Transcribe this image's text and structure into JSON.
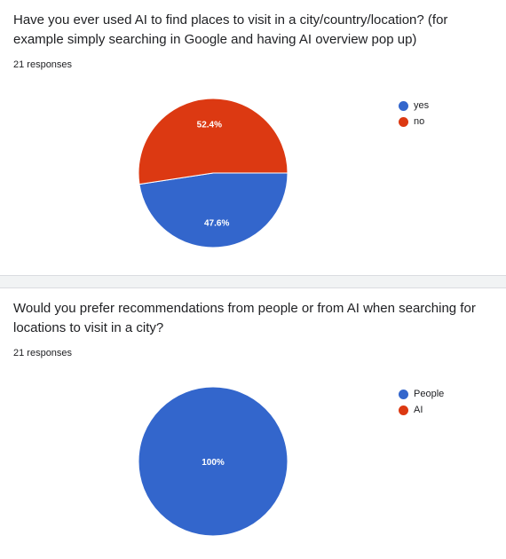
{
  "chart_data": [
    {
      "type": "pie",
      "title": "Have you ever used AI to find places to visit in a city/country/location? (for example simply searching in Google and having AI overview pop up)",
      "responses": "21 responses",
      "legend_position": "right",
      "categories": [
        "yes",
        "no"
      ],
      "values": [
        47.6,
        52.4
      ],
      "labels": [
        "47.6%",
        "52.4%"
      ],
      "colors": [
        "#3366cc",
        "#dc3912"
      ]
    },
    {
      "type": "pie",
      "title": "Would you prefer recommendations from people or from AI when searching for locations to visit in a city?",
      "responses": "21 responses",
      "legend_position": "right",
      "categories": [
        "People",
        "AI"
      ],
      "values": [
        100,
        0
      ],
      "labels": [
        "100%",
        ""
      ],
      "colors": [
        "#3366cc",
        "#dc3912"
      ]
    }
  ]
}
